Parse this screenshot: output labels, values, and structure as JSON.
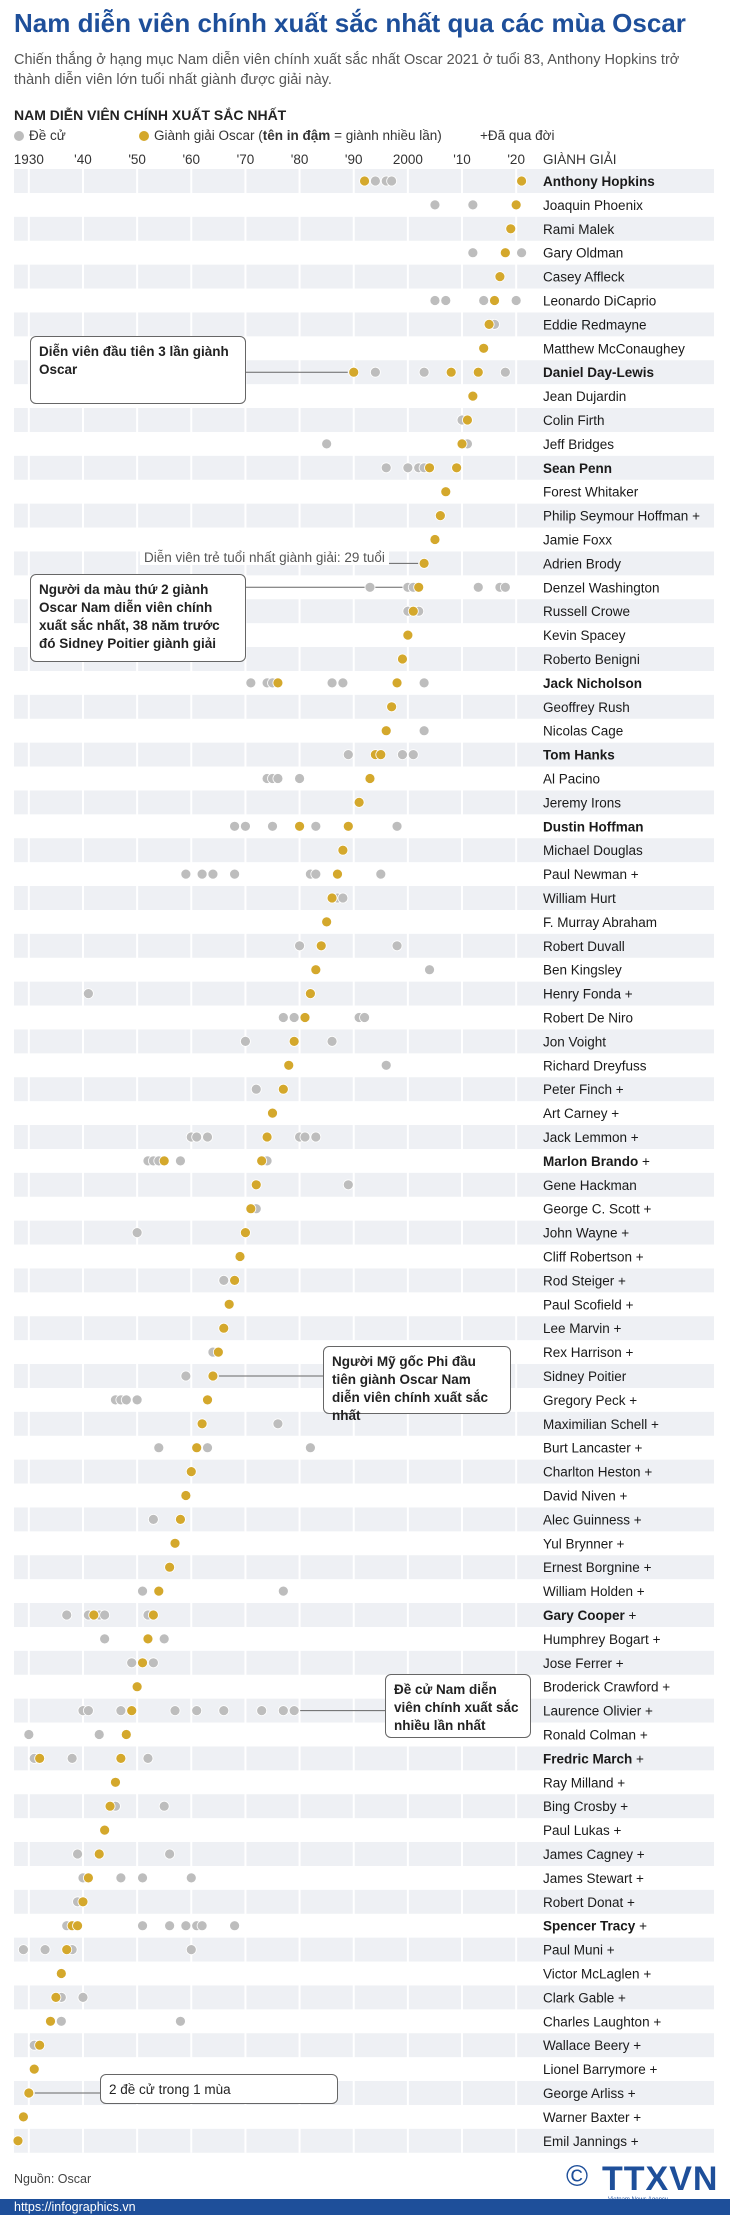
{
  "title": "Nam diễn viên chính xuất sắc nhất qua các mùa Oscar",
  "subtitle": "Chiến thắng ở hạng mục Nam diễn viên chính xuất sắc nhất Oscar 2021 ở tuổi 83, Anthony Hopkins trở thành diễn viên lớn tuổi nhất giành được giải này.",
  "chart_heading": "NAM DIỄN VIÊN CHÍNH XUẤT SẮC NHẤT",
  "legend": {
    "nominee_label": "Đề cử",
    "winner_label_prefix": "Giành giải Oscar (",
    "winner_label_bold": "tên in đậm",
    "winner_label_suffix": " = giành nhiều lần)",
    "deceased_label": "+Đã qua đời",
    "winner_col_header": "GIÀNH GIẢI"
  },
  "colors": {
    "title": "#1e4f9a",
    "nominee": "#bdbdbd",
    "winner": "#d4a82c",
    "band": "#eef0f4"
  },
  "annotations": {
    "day_lewis": "Diễn viên đầu tiên 3 lần giành Oscar",
    "youngest": "Diễn viên trẻ tuổi nhất giành giải: 29 tuổi",
    "washington": "Người da màu thứ 2 giành Oscar Nam diễn viên chính xuất sắc nhất, 38 năm trước đó Sidney Poitier giành giải",
    "poitier": "Người Mỹ gốc Phi đầu tiên giành Oscar Nam diễn viên chính xuất sắc nhất",
    "olivier": "Đề cử Nam diễn viên chính xuất sắc nhiều lần nhất",
    "two_noms": "2 đề cử trong 1 mùa"
  },
  "footer": {
    "source": "Nguồn: Oscar",
    "url": "https://infographics.vn",
    "logo": "TTXVN",
    "logo_copy": "©",
    "logo_sub": "Vietnam News Agency"
  },
  "chart_data": {
    "type": "scatter",
    "title": "Nam diễn viên chính xuất sắc nhất qua các mùa Oscar",
    "xlabel": "",
    "ylabel": "",
    "x_ticks": [
      "1930",
      "'40",
      "'50",
      "'60",
      "'70",
      "'80",
      "'90",
      "2000",
      "'10",
      "'20"
    ],
    "x_tick_years": [
      1930,
      1940,
      1950,
      1960,
      1970,
      1980,
      1990,
      2000,
      2010,
      2020
    ],
    "xlim": [
      1928,
      2022
    ],
    "actors": [
      {
        "name": "Anthony Hopkins",
        "bold": true,
        "deceased": false,
        "wins": [
          1992,
          2021
        ],
        "noms": [
          1994,
          1996,
          1997
        ]
      },
      {
        "name": "Joaquin Phoenix",
        "bold": false,
        "deceased": false,
        "wins": [
          2020
        ],
        "noms": [
          2005,
          2012
        ]
      },
      {
        "name": "Rami Malek",
        "bold": false,
        "deceased": false,
        "wins": [
          2019
        ],
        "noms": []
      },
      {
        "name": "Gary Oldman",
        "bold": false,
        "deceased": false,
        "wins": [
          2018
        ],
        "noms": [
          2012,
          2021
        ]
      },
      {
        "name": "Casey Affleck",
        "bold": false,
        "deceased": false,
        "wins": [
          2017
        ],
        "noms": []
      },
      {
        "name": "Leonardo DiCaprio",
        "bold": false,
        "deceased": false,
        "wins": [
          2016
        ],
        "noms": [
          2005,
          2007,
          2014,
          2020
        ]
      },
      {
        "name": "Eddie Redmayne",
        "bold": false,
        "deceased": false,
        "wins": [
          2015
        ],
        "noms": [
          2016
        ]
      },
      {
        "name": "Matthew McConaughey",
        "bold": false,
        "deceased": false,
        "wins": [
          2014
        ],
        "noms": []
      },
      {
        "name": "Daniel Day-Lewis",
        "bold": true,
        "deceased": false,
        "wins": [
          1990,
          2008,
          2013
        ],
        "noms": [
          1994,
          2003,
          2018
        ]
      },
      {
        "name": "Jean Dujardin",
        "bold": false,
        "deceased": false,
        "wins": [
          2012
        ],
        "noms": []
      },
      {
        "name": "Colin Firth",
        "bold": false,
        "deceased": false,
        "wins": [
          2011
        ],
        "noms": [
          2010
        ]
      },
      {
        "name": "Jeff Bridges",
        "bold": false,
        "deceased": false,
        "wins": [
          2010
        ],
        "noms": [
          1985,
          2011
        ]
      },
      {
        "name": "Sean Penn",
        "bold": true,
        "deceased": false,
        "wins": [
          2004,
          2009
        ],
        "noms": [
          1996,
          2000,
          2002,
          2003
        ]
      },
      {
        "name": "Forest Whitaker",
        "bold": false,
        "deceased": false,
        "wins": [
          2007
        ],
        "noms": []
      },
      {
        "name": "Philip Seymour Hoffman",
        "bold": false,
        "deceased": true,
        "wins": [
          2006
        ],
        "noms": []
      },
      {
        "name": "Jamie Foxx",
        "bold": false,
        "deceased": false,
        "wins": [
          2005
        ],
        "noms": []
      },
      {
        "name": "Adrien Brody",
        "bold": false,
        "deceased": false,
        "wins": [
          2003
        ],
        "noms": []
      },
      {
        "name": "Denzel Washington",
        "bold": false,
        "deceased": false,
        "wins": [
          2002
        ],
        "noms": [
          1993,
          2000,
          2001,
          2013,
          2017,
          2018
        ]
      },
      {
        "name": "Russell Crowe",
        "bold": false,
        "deceased": false,
        "wins": [
          2001
        ],
        "noms": [
          2000,
          2002
        ]
      },
      {
        "name": "Kevin Spacey",
        "bold": false,
        "deceased": false,
        "wins": [
          2000
        ],
        "noms": []
      },
      {
        "name": "Roberto Benigni",
        "bold": false,
        "deceased": false,
        "wins": [
          1999
        ],
        "noms": []
      },
      {
        "name": "Jack Nicholson",
        "bold": true,
        "deceased": false,
        "wins": [
          1976,
          1998
        ],
        "noms": [
          1971,
          1974,
          1975,
          1986,
          1988,
          2003
        ]
      },
      {
        "name": "Geoffrey Rush",
        "bold": false,
        "deceased": false,
        "wins": [
          1997
        ],
        "noms": []
      },
      {
        "name": "Nicolas Cage",
        "bold": false,
        "deceased": false,
        "wins": [
          1996
        ],
        "noms": [
          2003
        ]
      },
      {
        "name": "Tom Hanks",
        "bold": true,
        "deceased": false,
        "wins": [
          1994,
          1995
        ],
        "noms": [
          1989,
          1999,
          2001
        ]
      },
      {
        "name": "Al Pacino",
        "bold": false,
        "deceased": false,
        "wins": [
          1993
        ],
        "noms": [
          1974,
          1975,
          1976,
          1980
        ]
      },
      {
        "name": "Jeremy Irons",
        "bold": false,
        "deceased": false,
        "wins": [
          1991
        ],
        "noms": []
      },
      {
        "name": "Dustin Hoffman",
        "bold": true,
        "deceased": false,
        "wins": [
          1980,
          1989
        ],
        "noms": [
          1968,
          1970,
          1975,
          1983,
          1998
        ]
      },
      {
        "name": "Michael Douglas",
        "bold": false,
        "deceased": false,
        "wins": [
          1988
        ],
        "noms": []
      },
      {
        "name": "Paul Newman",
        "bold": false,
        "deceased": true,
        "wins": [
          1987
        ],
        "noms": [
          1959,
          1962,
          1964,
          1968,
          1982,
          1983,
          1995
        ]
      },
      {
        "name": "William Hurt",
        "bold": false,
        "deceased": false,
        "wins": [
          1986
        ],
        "noms": [
          1987,
          1988
        ]
      },
      {
        "name": "F. Murray Abraham",
        "bold": false,
        "deceased": false,
        "wins": [
          1985
        ],
        "noms": []
      },
      {
        "name": "Robert Duvall",
        "bold": false,
        "deceased": false,
        "wins": [
          1984
        ],
        "noms": [
          1980,
          1998
        ]
      },
      {
        "name": "Ben Kingsley",
        "bold": false,
        "deceased": false,
        "wins": [
          1983
        ],
        "noms": [
          2004
        ]
      },
      {
        "name": "Henry Fonda",
        "bold": false,
        "deceased": true,
        "wins": [
          1982
        ],
        "noms": [
          1941
        ]
      },
      {
        "name": "Robert De Niro",
        "bold": false,
        "deceased": false,
        "wins": [
          1981
        ],
        "noms": [
          1977,
          1979,
          1991,
          1992
        ]
      },
      {
        "name": "Jon Voight",
        "bold": false,
        "deceased": false,
        "wins": [
          1979
        ],
        "noms": [
          1970,
          1986
        ]
      },
      {
        "name": "Richard Dreyfuss",
        "bold": false,
        "deceased": false,
        "wins": [
          1978
        ],
        "noms": [
          1996
        ]
      },
      {
        "name": "Peter Finch",
        "bold": false,
        "deceased": true,
        "wins": [
          1977
        ],
        "noms": [
          1972
        ]
      },
      {
        "name": "Art Carney",
        "bold": false,
        "deceased": true,
        "wins": [
          1975
        ],
        "noms": []
      },
      {
        "name": "Jack Lemmon",
        "bold": false,
        "deceased": true,
        "wins": [
          1974
        ],
        "noms": [
          1960,
          1961,
          1963,
          1980,
          1981,
          1983
        ]
      },
      {
        "name": "Marlon Brando",
        "bold": true,
        "deceased": true,
        "wins": [
          1955,
          1973
        ],
        "noms": [
          1952,
          1953,
          1954,
          1958,
          1974
        ]
      },
      {
        "name": "Gene Hackman",
        "bold": false,
        "deceased": false,
        "wins": [
          1972
        ],
        "noms": [
          1989
        ]
      },
      {
        "name": "George C. Scott",
        "bold": false,
        "deceased": true,
        "wins": [
          1971
        ],
        "noms": [
          1972
        ]
      },
      {
        "name": "John Wayne",
        "bold": false,
        "deceased": true,
        "wins": [
          1970
        ],
        "noms": [
          1950
        ]
      },
      {
        "name": "Cliff Robertson",
        "bold": false,
        "deceased": true,
        "wins": [
          1969
        ],
        "noms": []
      },
      {
        "name": "Rod Steiger",
        "bold": false,
        "deceased": true,
        "wins": [
          1968
        ],
        "noms": [
          1966
        ]
      },
      {
        "name": "Paul Scofield",
        "bold": false,
        "deceased": true,
        "wins": [
          1967
        ],
        "noms": []
      },
      {
        "name": "Lee Marvin",
        "bold": false,
        "deceased": true,
        "wins": [
          1966
        ],
        "noms": []
      },
      {
        "name": "Rex Harrison",
        "bold": false,
        "deceased": true,
        "wins": [
          1965
        ],
        "noms": [
          1964
        ]
      },
      {
        "name": "Sidney Poitier",
        "bold": false,
        "deceased": false,
        "wins": [
          1964
        ],
        "noms": [
          1959
        ]
      },
      {
        "name": "Gregory Peck",
        "bold": false,
        "deceased": true,
        "wins": [
          1963
        ],
        "noms": [
          1946,
          1947,
          1948,
          1950
        ]
      },
      {
        "name": "Maximilian Schell",
        "bold": false,
        "deceased": true,
        "wins": [
          1962
        ],
        "noms": [
          1976
        ]
      },
      {
        "name": "Burt Lancaster",
        "bold": false,
        "deceased": true,
        "wins": [
          1961
        ],
        "noms": [
          1954,
          1963,
          1982
        ]
      },
      {
        "name": "Charlton Heston",
        "bold": false,
        "deceased": true,
        "wins": [
          1960
        ],
        "noms": []
      },
      {
        "name": "David Niven",
        "bold": false,
        "deceased": true,
        "wins": [
          1959
        ],
        "noms": []
      },
      {
        "name": "Alec Guinness",
        "bold": false,
        "deceased": true,
        "wins": [
          1958
        ],
        "noms": [
          1953
        ]
      },
      {
        "name": "Yul Brynner",
        "bold": false,
        "deceased": true,
        "wins": [
          1957
        ],
        "noms": []
      },
      {
        "name": "Ernest Borgnine",
        "bold": false,
        "deceased": true,
        "wins": [
          1956
        ],
        "noms": []
      },
      {
        "name": "William Holden",
        "bold": false,
        "deceased": true,
        "wins": [
          1954
        ],
        "noms": [
          1951,
          1977
        ]
      },
      {
        "name": "Gary Cooper",
        "bold": true,
        "deceased": true,
        "wins": [
          1942,
          1953
        ],
        "noms": [
          1937,
          1941,
          1943,
          1944,
          1952
        ]
      },
      {
        "name": "Humphrey Bogart",
        "bold": false,
        "deceased": true,
        "wins": [
          1952
        ],
        "noms": [
          1944,
          1955
        ]
      },
      {
        "name": "Jose Ferrer",
        "bold": false,
        "deceased": true,
        "wins": [
          1951
        ],
        "noms": [
          1949,
          1953
        ]
      },
      {
        "name": "Broderick Crawford",
        "bold": false,
        "deceased": true,
        "wins": [
          1950
        ],
        "noms": []
      },
      {
        "name": "Laurence Olivier",
        "bold": false,
        "deceased": true,
        "wins": [
          1949
        ],
        "noms": [
          1940,
          1941,
          1947,
          1957,
          1961,
          1966,
          1973,
          1977,
          1979
        ]
      },
      {
        "name": "Ronald Colman",
        "bold": false,
        "deceased": true,
        "wins": [
          1948
        ],
        "noms": [
          1930,
          1943
        ]
      },
      {
        "name": "Fredric March",
        "bold": true,
        "deceased": true,
        "wins": [
          1932,
          1947
        ],
        "noms": [
          1931,
          1938,
          1952
        ]
      },
      {
        "name": "Ray Milland",
        "bold": false,
        "deceased": true,
        "wins": [
          1946
        ],
        "noms": []
      },
      {
        "name": "Bing Crosby",
        "bold": false,
        "deceased": true,
        "wins": [
          1945
        ],
        "noms": [
          1946,
          1955
        ]
      },
      {
        "name": "Paul Lukas",
        "bold": false,
        "deceased": true,
        "wins": [
          1944
        ],
        "noms": []
      },
      {
        "name": "James Cagney",
        "bold": false,
        "deceased": true,
        "wins": [
          1943
        ],
        "noms": [
          1939,
          1956
        ]
      },
      {
        "name": "James Stewart",
        "bold": false,
        "deceased": true,
        "wins": [
          1941
        ],
        "noms": [
          1940,
          1947,
          1951,
          1960
        ]
      },
      {
        "name": "Robert Donat",
        "bold": false,
        "deceased": true,
        "wins": [
          1940
        ],
        "noms": [
          1939
        ]
      },
      {
        "name": "Spencer Tracy",
        "bold": true,
        "deceased": true,
        "wins": [
          1938,
          1939
        ],
        "noms": [
          1937,
          1951,
          1956,
          1959,
          1961,
          1962,
          1968
        ]
      },
      {
        "name": "Paul Muni",
        "bold": false,
        "deceased": true,
        "wins": [
          1937
        ],
        "noms": [
          1929,
          1933,
          1938,
          1960
        ]
      },
      {
        "name": "Victor McLaglen",
        "bold": false,
        "deceased": true,
        "wins": [
          1936
        ],
        "noms": []
      },
      {
        "name": "Clark Gable",
        "bold": false,
        "deceased": true,
        "wins": [
          1935
        ],
        "noms": [
          1936,
          1940
        ]
      },
      {
        "name": "Charles Laughton",
        "bold": false,
        "deceased": true,
        "wins": [
          1934
        ],
        "noms": [
          1936,
          1958
        ]
      },
      {
        "name": "Wallace Beery",
        "bold": false,
        "deceased": true,
        "wins": [
          1932
        ],
        "noms": [
          1931
        ]
      },
      {
        "name": "Lionel Barrymore",
        "bold": false,
        "deceased": true,
        "wins": [
          1931
        ],
        "noms": []
      },
      {
        "name": "George Arliss",
        "bold": false,
        "deceased": true,
        "wins": [
          1930
        ],
        "noms": [
          1930
        ]
      },
      {
        "name": "Warner Baxter",
        "bold": false,
        "deceased": true,
        "wins": [
          1929
        ],
        "noms": []
      },
      {
        "name": "Emil Jannings",
        "bold": false,
        "deceased": true,
        "wins": [
          1928
        ],
        "noms": []
      }
    ]
  }
}
